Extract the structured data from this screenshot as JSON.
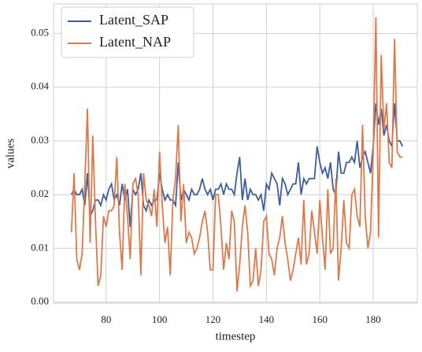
{
  "chart_data": {
    "type": "line",
    "xlabel": "timestep",
    "ylabel": "values",
    "x": [
      67,
      68,
      69,
      70,
      71,
      72,
      73,
      74,
      75,
      76,
      77,
      78,
      79,
      80,
      81,
      82,
      83,
      84,
      85,
      86,
      87,
      88,
      89,
      90,
      91,
      92,
      93,
      94,
      95,
      96,
      97,
      98,
      99,
      100,
      101,
      102,
      103,
      104,
      105,
      106,
      107,
      108,
      109,
      110,
      111,
      112,
      113,
      114,
      115,
      116,
      117,
      118,
      119,
      120,
      121,
      122,
      123,
      124,
      125,
      126,
      127,
      128,
      129,
      130,
      131,
      132,
      133,
      134,
      135,
      136,
      137,
      138,
      139,
      140,
      141,
      142,
      143,
      144,
      145,
      146,
      147,
      148,
      149,
      150,
      151,
      152,
      153,
      154,
      155,
      156,
      157,
      158,
      159,
      160,
      161,
      162,
      163,
      164,
      165,
      166,
      167,
      168,
      169,
      170,
      171,
      172,
      173,
      174,
      175,
      176,
      177,
      178,
      179,
      180,
      181,
      182,
      183,
      184,
      185,
      186,
      187,
      188,
      189,
      190,
      191
    ],
    "series": [
      {
        "name": "Latent_SAP",
        "color": "#3c5e9e",
        "values": [
          0.02,
          0.021,
          0.02,
          0.02,
          0.021,
          0.018,
          0.024,
          0.016,
          0.017,
          0.019,
          0.019,
          0.018,
          0.02,
          0.019,
          0.021,
          0.022,
          0.019,
          0.02,
          0.018,
          0.022,
          0.019,
          0.021,
          0.014,
          0.021,
          0.02,
          0.021,
          0.024,
          0.018,
          0.017,
          0.019,
          0.018,
          0.019,
          0.019,
          0.024,
          0.021,
          0.019,
          0.02,
          0.019,
          0.019,
          0.018,
          0.026,
          0.019,
          0.021,
          0.02,
          0.019,
          0.021,
          0.02,
          0.02,
          0.021,
          0.023,
          0.021,
          0.02,
          0.021,
          0.019,
          0.021,
          0.021,
          0.022,
          0.02,
          0.022,
          0.021,
          0.021,
          0.02,
          0.024,
          0.027,
          0.019,
          0.023,
          0.019,
          0.021,
          0.02,
          0.02,
          0.019,
          0.02,
          0.017,
          0.022,
          0.021,
          0.024,
          0.023,
          0.022,
          0.018,
          0.023,
          0.022,
          0.02,
          0.021,
          0.022,
          0.022,
          0.026,
          0.02,
          0.023,
          0.022,
          0.023,
          0.023,
          0.023,
          0.029,
          0.026,
          0.024,
          0.025,
          0.023,
          0.026,
          0.021,
          0.02,
          0.028,
          0.024,
          0.024,
          0.026,
          0.026,
          0.027,
          0.026,
          0.03,
          0.025,
          0.027,
          0.028,
          0.026,
          0.024,
          0.029,
          0.037,
          0.033,
          0.036,
          0.031,
          0.033,
          0.03,
          0.029,
          0.037,
          0.03,
          0.03,
          0.029
        ]
      },
      {
        "name": "Latent_NAP",
        "color": "#dd7a4c",
        "values": [
          0.013,
          0.024,
          0.008,
          0.006,
          0.009,
          0.022,
          0.036,
          0.011,
          0.031,
          0.015,
          0.003,
          0.005,
          0.016,
          0.014,
          0.017,
          0.017,
          0.018,
          0.027,
          0.013,
          0.006,
          0.022,
          0.016,
          0.008,
          0.022,
          0.023,
          0.02,
          0.005,
          0.024,
          0.019,
          0.018,
          0.016,
          0.021,
          0.014,
          0.028,
          0.018,
          0.011,
          0.014,
          0.005,
          0.019,
          0.023,
          0.033,
          0.015,
          0.022,
          0.011,
          0.013,
          0.012,
          0.009,
          0.01,
          0.012,
          0.015,
          0.017,
          0.013,
          0.006,
          0.006,
          0.02,
          0.02,
          0.014,
          0.006,
          0.011,
          0.008,
          0.017,
          0.015,
          0.002,
          0.007,
          0.014,
          0.018,
          0.013,
          0.003,
          0.004,
          0.01,
          0.003,
          0.006,
          0.015,
          0.016,
          0.009,
          0.008,
          0.005,
          0.01,
          0.012,
          0.016,
          0.011,
          0.008,
          0.004,
          0.006,
          0.009,
          0.012,
          0.007,
          0.019,
          0.007,
          0.009,
          0.017,
          0.013,
          0.009,
          0.019,
          0.012,
          0.006,
          0.021,
          0.009,
          0.01,
          0.023,
          0.004,
          0.01,
          0.019,
          0.011,
          0.01,
          0.02,
          0.021,
          0.016,
          0.014,
          0.033,
          0.016,
          0.01,
          0.013,
          0.028,
          0.053,
          0.012,
          0.046,
          0.032,
          0.037,
          0.026,
          0.025,
          0.049,
          0.028,
          0.027,
          0.027
        ]
      }
    ],
    "xlim": [
      60.3,
      196.5
    ],
    "xticks": [
      80,
      100,
      120,
      140,
      160,
      180
    ],
    "ylim": [
      -0.0002,
      0.0555
    ],
    "yticks": [
      {
        "value": 0,
        "label": "0.00"
      },
      {
        "value": 0.01,
        "label": "0.01"
      },
      {
        "value": 0.02,
        "label": "0.02"
      },
      {
        "value": 0.03,
        "label": "0.03"
      },
      {
        "value": 0.04,
        "label": "0.04"
      },
      {
        "value": 0.05,
        "label": "0.05"
      }
    ],
    "grid": true,
    "legend": "upper left"
  }
}
